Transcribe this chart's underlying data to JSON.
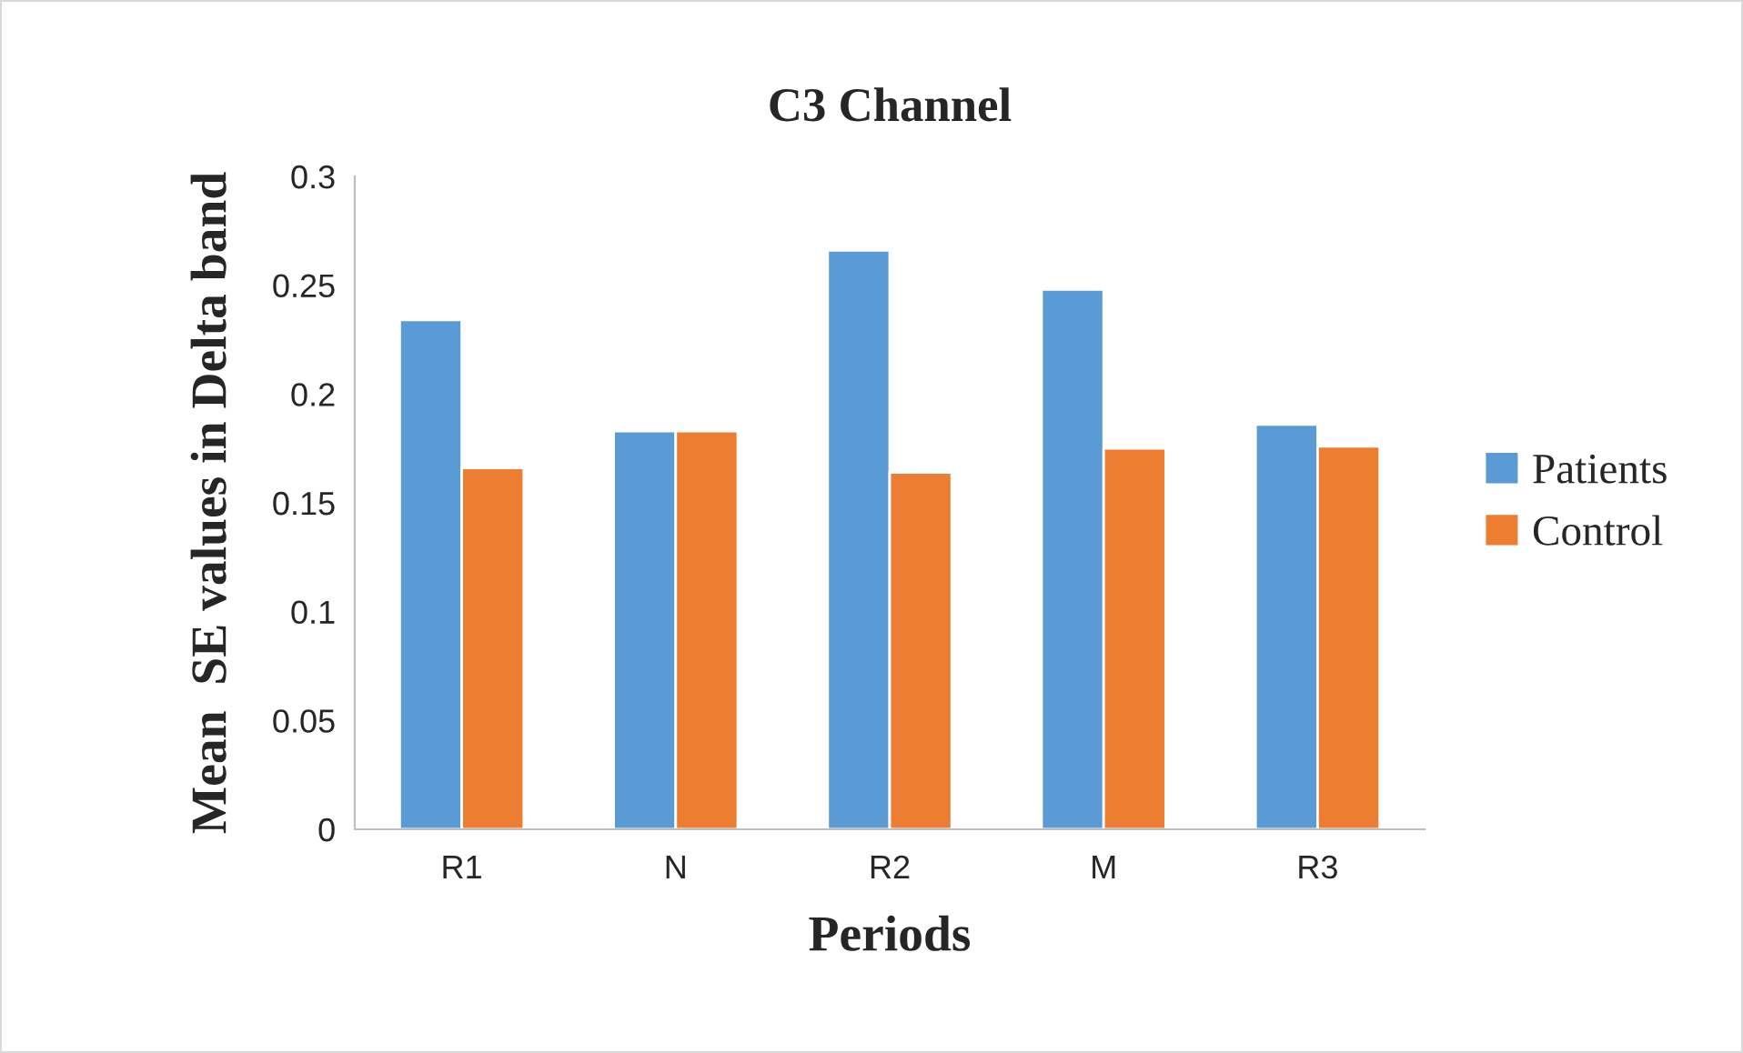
{
  "chart_data": {
    "type": "bar",
    "title": "C3 Channel",
    "xlabel": "Periods",
    "ylabel": "Mean  SE values in Delta band",
    "categories": [
      "R1",
      "N",
      "R2",
      "M",
      "R3"
    ],
    "series": [
      {
        "name": "Patients",
        "color": "#5b9bd5",
        "values": [
          0.234,
          0.183,
          0.266,
          0.248,
          0.186
        ]
      },
      {
        "name": "Control",
        "color": "#ed7d31",
        "values": [
          0.166,
          0.183,
          0.164,
          0.175,
          0.176
        ]
      }
    ],
    "ylim": [
      0,
      0.3
    ],
    "yticks": [
      0,
      0.05,
      0.1,
      0.15,
      0.2,
      0.25,
      0.3
    ],
    "grid": false,
    "legend": "right"
  }
}
